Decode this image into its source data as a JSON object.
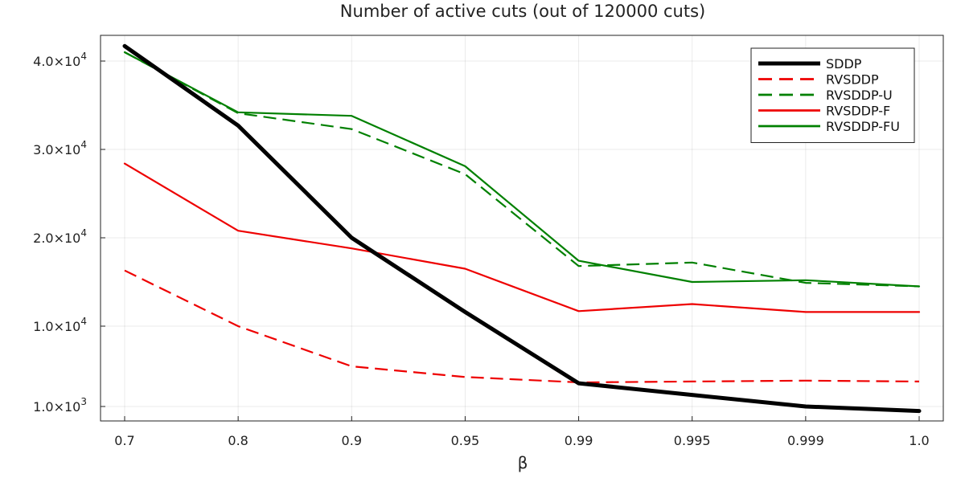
{
  "chart_data": {
    "type": "line",
    "title": "Number of active cuts (out of 120000 cuts)",
    "xlabel": "β",
    "ylabel": "",
    "categories": [
      "0.7",
      "0.8",
      "0.9",
      "0.95",
      "0.99",
      "0.995",
      "0.999",
      "1.0"
    ],
    "y_axis_scale": "piecewise (tick 1.0×10³ drawn just below 1.0×10⁴)",
    "ylim": [
      500,
      42800
    ],
    "y_ticks": [
      {
        "value": 1000,
        "label": "1.0×10",
        "exp": "3"
      },
      {
        "value": 10000,
        "label": "1.0×10",
        "exp": "4"
      },
      {
        "value": 20000,
        "label": "2.0×10",
        "exp": "4"
      },
      {
        "value": 30000,
        "label": "3.0×10",
        "exp": "4"
      },
      {
        "value": 40000,
        "label": "4.0×10",
        "exp": "4"
      }
    ],
    "grid": true,
    "legend_position": "top-right",
    "series": [
      {
        "name": "SDDP",
        "color": "#000000",
        "style": "solid",
        "width": 5,
        "values": [
          41700,
          32700,
          20000,
          11600,
          3600,
          2300,
          1000,
          500
        ]
      },
      {
        "name": "RVSDDP",
        "color": "#ee0000",
        "style": "dashed",
        "width": 2.2,
        "values": [
          16300,
          10000,
          5500,
          4300,
          3700,
          3800,
          3900,
          3800
        ]
      },
      {
        "name": "RVSDDP-U",
        "color": "#008000",
        "style": "dashed",
        "width": 2.2,
        "values": [
          41000,
          34100,
          32300,
          27200,
          16800,
          17200,
          14900,
          14500
        ]
      },
      {
        "name": "RVSDDP-F",
        "color": "#ee0000",
        "style": "solid",
        "width": 2.2,
        "values": [
          28400,
          20800,
          18800,
          16500,
          11700,
          12500,
          11600,
          11600
        ]
      },
      {
        "name": "RVSDDP-FU",
        "color": "#008000",
        "style": "solid",
        "width": 2.2,
        "values": [
          41000,
          34200,
          33800,
          28100,
          17400,
          15000,
          15200,
          14500
        ]
      }
    ]
  }
}
